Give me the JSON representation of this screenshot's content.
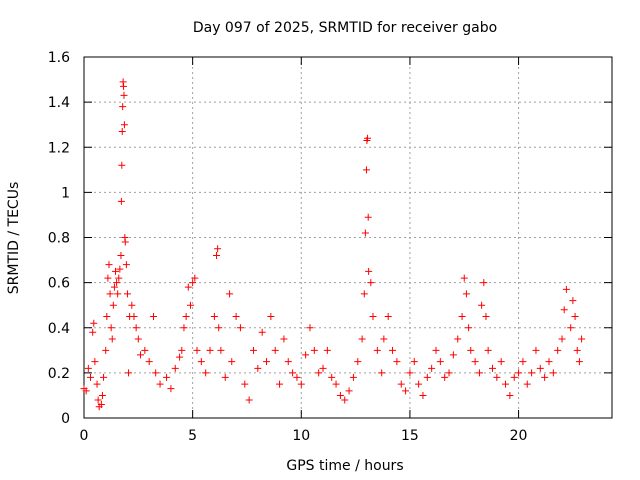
{
  "chart_data": {
    "type": "scatter",
    "title": "Day 097 of 2025, SRMTID for receiver gabo",
    "xlabel": "GPS time / hours",
    "ylabel": "SRMTID / TECUs",
    "xlim": [
      0,
      24.3
    ],
    "ylim": [
      0,
      1.6
    ],
    "xticks": [
      0,
      5,
      10,
      15,
      20
    ],
    "xtick_labels": [
      "0",
      "5",
      "10",
      "15",
      "20"
    ],
    "yticks": [
      0,
      0.2,
      0.4,
      0.6,
      0.8,
      1.0,
      1.2,
      1.4,
      1.6
    ],
    "ytick_labels": [
      "0",
      "0.2",
      "0.4",
      "0.6",
      "0.8",
      "1",
      "1.2",
      "1.4",
      "1.6"
    ],
    "grid": true,
    "marker": "+",
    "color": "#ff0000",
    "series": [
      {
        "name": "SRMTID",
        "points": [
          [
            0.0,
            0.13
          ],
          [
            0.1,
            0.12
          ],
          [
            0.2,
            0.22
          ],
          [
            0.3,
            0.18
          ],
          [
            0.4,
            0.38
          ],
          [
            0.45,
            0.42
          ],
          [
            0.5,
            0.25
          ],
          [
            0.6,
            0.15
          ],
          [
            0.65,
            0.08
          ],
          [
            0.7,
            0.05
          ],
          [
            0.8,
            0.06
          ],
          [
            0.85,
            0.1
          ],
          [
            0.9,
            0.18
          ],
          [
            1.0,
            0.3
          ],
          [
            1.05,
            0.45
          ],
          [
            1.1,
            0.62
          ],
          [
            1.15,
            0.68
          ],
          [
            1.2,
            0.55
          ],
          [
            1.25,
            0.4
          ],
          [
            1.3,
            0.35
          ],
          [
            1.35,
            0.5
          ],
          [
            1.4,
            0.58
          ],
          [
            1.45,
            0.65
          ],
          [
            1.5,
            0.6
          ],
          [
            1.55,
            0.55
          ],
          [
            1.6,
            0.62
          ],
          [
            1.65,
            0.66
          ],
          [
            1.7,
            0.72
          ],
          [
            1.72,
            0.96
          ],
          [
            1.74,
            1.12
          ],
          [
            1.76,
            1.27
          ],
          [
            1.78,
            1.38
          ],
          [
            1.8,
            1.49
          ],
          [
            1.82,
            1.47
          ],
          [
            1.84,
            1.43
          ],
          [
            1.86,
            1.3
          ],
          [
            1.88,
            0.8
          ],
          [
            1.9,
            0.78
          ],
          [
            1.95,
            0.68
          ],
          [
            2.0,
            0.55
          ],
          [
            2.05,
            0.2
          ],
          [
            2.1,
            0.45
          ],
          [
            2.2,
            0.5
          ],
          [
            2.3,
            0.45
          ],
          [
            2.4,
            0.4
          ],
          [
            2.5,
            0.35
          ],
          [
            2.6,
            0.28
          ],
          [
            2.8,
            0.3
          ],
          [
            3.0,
            0.25
          ],
          [
            3.2,
            0.45
          ],
          [
            3.3,
            0.2
          ],
          [
            3.5,
            0.15
          ],
          [
            3.8,
            0.18
          ],
          [
            4.0,
            0.13
          ],
          [
            4.2,
            0.22
          ],
          [
            4.4,
            0.27
          ],
          [
            4.5,
            0.3
          ],
          [
            4.6,
            0.4
          ],
          [
            4.7,
            0.45
          ],
          [
            4.8,
            0.58
          ],
          [
            4.9,
            0.5
          ],
          [
            5.0,
            0.6
          ],
          [
            5.1,
            0.62
          ],
          [
            5.2,
            0.3
          ],
          [
            5.4,
            0.25
          ],
          [
            5.6,
            0.2
          ],
          [
            5.8,
            0.3
          ],
          [
            6.0,
            0.45
          ],
          [
            6.1,
            0.72
          ],
          [
            6.15,
            0.75
          ],
          [
            6.2,
            0.4
          ],
          [
            6.3,
            0.3
          ],
          [
            6.5,
            0.18
          ],
          [
            6.7,
            0.55
          ],
          [
            6.8,
            0.25
          ],
          [
            7.0,
            0.45
          ],
          [
            7.2,
            0.4
          ],
          [
            7.4,
            0.15
          ],
          [
            7.6,
            0.08
          ],
          [
            7.8,
            0.3
          ],
          [
            8.0,
            0.22
          ],
          [
            8.2,
            0.38
          ],
          [
            8.4,
            0.25
          ],
          [
            8.6,
            0.45
          ],
          [
            8.8,
            0.3
          ],
          [
            9.0,
            0.15
          ],
          [
            9.2,
            0.35
          ],
          [
            9.4,
            0.25
          ],
          [
            9.6,
            0.2
          ],
          [
            9.8,
            0.18
          ],
          [
            10.0,
            0.15
          ],
          [
            10.2,
            0.28
          ],
          [
            10.4,
            0.4
          ],
          [
            10.6,
            0.3
          ],
          [
            10.8,
            0.2
          ],
          [
            11.0,
            0.22
          ],
          [
            11.2,
            0.3
          ],
          [
            11.4,
            0.18
          ],
          [
            11.6,
            0.15
          ],
          [
            11.8,
            0.1
          ],
          [
            12.0,
            0.08
          ],
          [
            12.2,
            0.12
          ],
          [
            12.4,
            0.18
          ],
          [
            12.6,
            0.25
          ],
          [
            12.8,
            0.35
          ],
          [
            12.9,
            0.55
          ],
          [
            12.95,
            0.82
          ],
          [
            13.0,
            1.1
          ],
          [
            13.02,
            1.23
          ],
          [
            13.05,
            1.24
          ],
          [
            13.08,
            0.89
          ],
          [
            13.1,
            0.65
          ],
          [
            13.2,
            0.6
          ],
          [
            13.3,
            0.45
          ],
          [
            13.5,
            0.3
          ],
          [
            13.7,
            0.2
          ],
          [
            13.8,
            0.35
          ],
          [
            14.0,
            0.45
          ],
          [
            14.2,
            0.3
          ],
          [
            14.4,
            0.25
          ],
          [
            14.6,
            0.15
          ],
          [
            14.8,
            0.12
          ],
          [
            15.0,
            0.2
          ],
          [
            15.2,
            0.25
          ],
          [
            15.4,
            0.15
          ],
          [
            15.6,
            0.1
          ],
          [
            15.8,
            0.18
          ],
          [
            16.0,
            0.22
          ],
          [
            16.2,
            0.3
          ],
          [
            16.4,
            0.25
          ],
          [
            16.6,
            0.18
          ],
          [
            16.8,
            0.2
          ],
          [
            17.0,
            0.28
          ],
          [
            17.2,
            0.35
          ],
          [
            17.4,
            0.45
          ],
          [
            17.5,
            0.62
          ],
          [
            17.6,
            0.55
          ],
          [
            17.7,
            0.4
          ],
          [
            17.8,
            0.3
          ],
          [
            18.0,
            0.25
          ],
          [
            18.2,
            0.2
          ],
          [
            18.3,
            0.5
          ],
          [
            18.4,
            0.6
          ],
          [
            18.5,
            0.45
          ],
          [
            18.6,
            0.3
          ],
          [
            18.8,
            0.22
          ],
          [
            19.0,
            0.18
          ],
          [
            19.2,
            0.25
          ],
          [
            19.4,
            0.15
          ],
          [
            19.6,
            0.1
          ],
          [
            19.8,
            0.18
          ],
          [
            20.0,
            0.2
          ],
          [
            20.2,
            0.25
          ],
          [
            20.4,
            0.15
          ],
          [
            20.6,
            0.2
          ],
          [
            20.8,
            0.3
          ],
          [
            21.0,
            0.22
          ],
          [
            21.2,
            0.18
          ],
          [
            21.4,
            0.25
          ],
          [
            21.6,
            0.2
          ],
          [
            21.8,
            0.3
          ],
          [
            22.0,
            0.35
          ],
          [
            22.1,
            0.48
          ],
          [
            22.2,
            0.57
          ],
          [
            22.4,
            0.4
          ],
          [
            22.5,
            0.52
          ],
          [
            22.6,
            0.45
          ],
          [
            22.7,
            0.3
          ],
          [
            22.8,
            0.25
          ],
          [
            22.9,
            0.35
          ]
        ]
      }
    ]
  }
}
